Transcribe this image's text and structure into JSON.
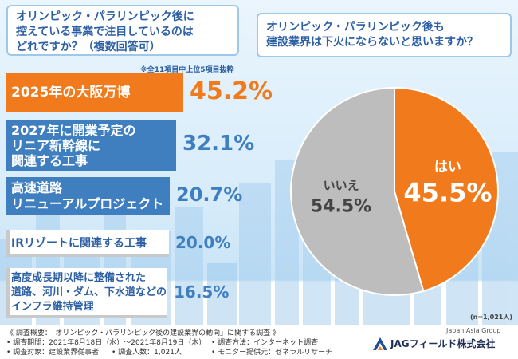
{
  "left_question": [
    "オリンピック・パラリンピック後に",
    "控えている事業で注目しているのは",
    "どれですか？（複数回答可）"
  ],
  "left_note": "※全11項目中上位5項目抜粋",
  "right_question": [
    "オリンピック・パラリンピック後も",
    "建設業界は下火にならないと思いますか？"
  ],
  "sample_size": "(n=1,021人)",
  "colors": {
    "accent_orange": "#f07a1c",
    "bar_blue": "#3f7fc0",
    "bar_gray": "#c9c9c9",
    "title_blue": "#2c5fa3",
    "pie_gray": "#bdbdbd"
  },
  "chart_data": [
    {
      "type": "bar",
      "title": "",
      "categories": [
        "2025年の大阪万博",
        "2027年に開業予定のリニア新幹線に関連する工事",
        "高速道路リニューアルプロジェクト",
        "IRリゾートに関連する工事",
        "高度成長期以降に整備された道路、河川・ダム、下水道などのインフラ維持管理"
      ],
      "category_lines": [
        [
          "2025年の大阪万博"
        ],
        [
          "2027年に開業予定の",
          "リニア新幹線に",
          "関連する工事"
        ],
        [
          "高速道路",
          "リニューアルプロジェクト"
        ],
        [
          "IRリゾートに関連する工事"
        ],
        [
          "高度成長期以降に整備された",
          "道路、河川・ダム、下水道などの",
          "インフラ維持管理"
        ]
      ],
      "values": [
        45.2,
        32.1,
        20.7,
        20.0,
        16.5
      ],
      "value_labels": [
        "45.2%",
        "32.1%",
        "20.7%",
        "20.0%",
        "16.5%"
      ],
      "unit": "%"
    },
    {
      "type": "pie",
      "title": "",
      "labels": [
        "はい",
        "いいえ"
      ],
      "values": [
        45.5,
        54.5
      ],
      "value_labels": [
        "45.5%",
        "54.5%"
      ],
      "colors": [
        "#f07a1c",
        "#bdbdbd"
      ]
    }
  ],
  "footer": {
    "survey_title": "《 調査概要：「オリンピック・パラリンピック後の建設業界の動向」に関する調査 》",
    "period": "• 調査期間：2021年8月18日（水）〜2021年8月19日（木）",
    "method": "• 調査方法：インターネット調査",
    "target": "• 調査対象：建設業界従事者",
    "count": "• 調査人数：1,021人",
    "monitor": "• モニター提供元：ゼネラルリサーチ",
    "group": "Japan Asia Group",
    "brand": "JAGフィールド株式会社"
  }
}
